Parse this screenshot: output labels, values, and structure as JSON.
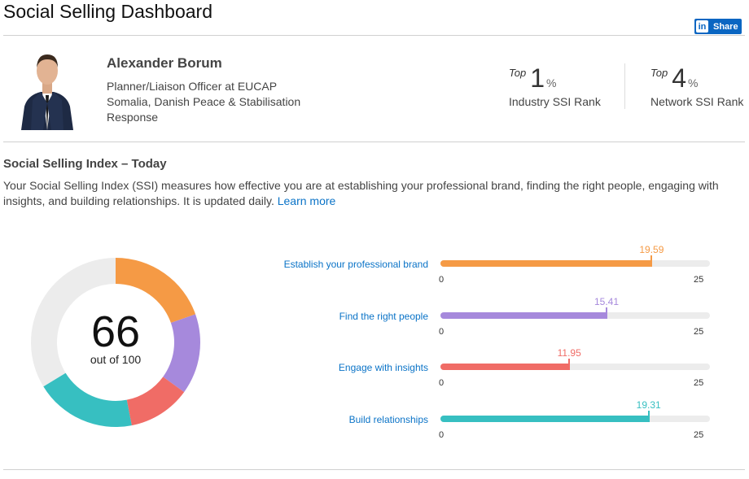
{
  "page": {
    "title": "Social Selling Dashboard"
  },
  "share": {
    "label": "Share",
    "logo_text": "in"
  },
  "profile": {
    "name": "Alexander Borum",
    "title_line1": "Planner/Liaison Officer at EUCAP",
    "title_line2": "Somalia, Danish Peace & Stabilisation",
    "title_line3": "Response"
  },
  "ranks": [
    {
      "prefix": "Top",
      "value": "1",
      "unit": "%",
      "label": "Industry SSI Rank"
    },
    {
      "prefix": "Top",
      "value": "4",
      "unit": "%",
      "label": "Network SSI Rank"
    }
  ],
  "ssi": {
    "heading": "Social Selling Index – Today",
    "description": "Your Social Selling Index (SSI) measures how effective you are at establishing your professional brand, finding the right people, engaging with insights, and building relationships. It is updated daily.",
    "learn_more": "Learn more",
    "score": "66",
    "out_of": "out of 100"
  },
  "colors": {
    "brand": "#0a66c2",
    "link": "#0a73c7",
    "track": "#ececec",
    "donut_rest": "#ececec"
  },
  "chart_data": {
    "type": "bar",
    "min": 0,
    "max": 25,
    "categories": [
      "Establish your professional brand",
      "Find the right people",
      "Engage with insights",
      "Build relationships"
    ],
    "values": [
      19.59,
      15.41,
      11.95,
      19.31
    ],
    "value_labels": [
      "19.59",
      "15.41",
      "11.95",
      "19.31"
    ],
    "colors": [
      "#f59a45",
      "#a689dc",
      "#f06c66",
      "#37bfc1"
    ],
    "tick_min_label": "0",
    "tick_max_label": "25",
    "donut_total": 100
  }
}
